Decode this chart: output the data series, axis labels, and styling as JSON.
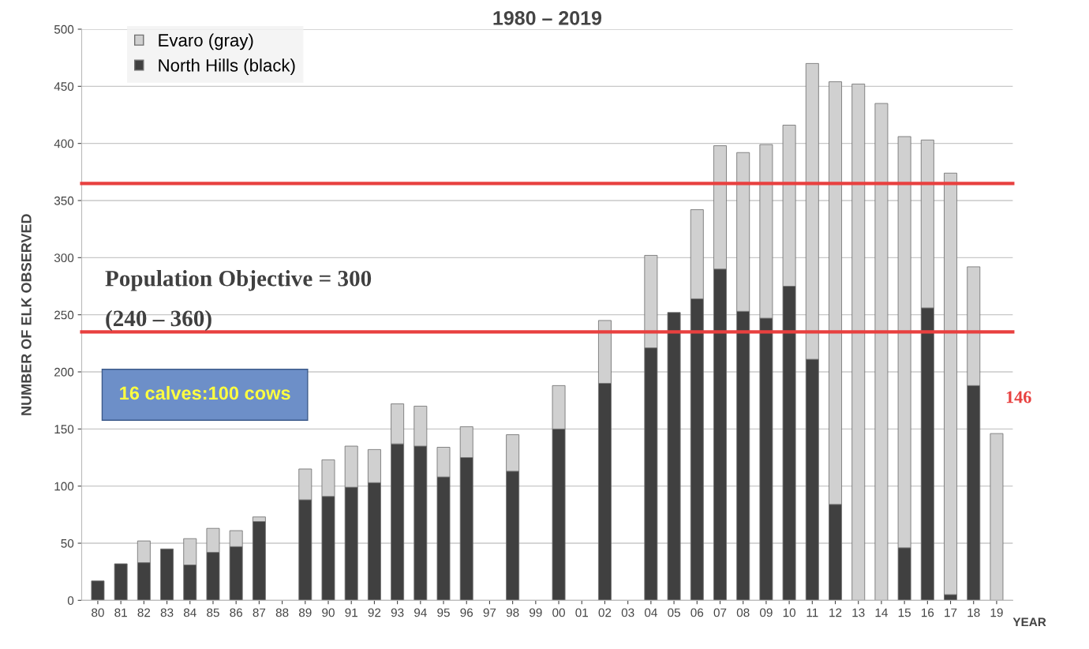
{
  "chart_data": {
    "type": "bar",
    "title": "1980 – 2019",
    "ylabel": "NUMBER OF ELK OBSERVED",
    "xlabel": "YEAR",
    "categories": [
      "80",
      "81",
      "82",
      "83",
      "84",
      "85",
      "86",
      "87",
      "88",
      "89",
      "90",
      "91",
      "92",
      "93",
      "94",
      "95",
      "96",
      "97",
      "98",
      "99",
      "00",
      "01",
      "02",
      "03",
      "04",
      "05",
      "06",
      "07",
      "08",
      "09",
      "10",
      "11",
      "12",
      "13",
      "14",
      "15",
      "16",
      "17",
      "18",
      "19"
    ],
    "stacked": true,
    "series": [
      {
        "name": "North Hills (black)",
        "color": "#404040",
        "values": [
          17,
          32,
          33,
          45,
          31,
          42,
          47,
          69,
          null,
          88,
          91,
          99,
          103,
          137,
          135,
          108,
          125,
          null,
          113,
          null,
          150,
          null,
          190,
          null,
          221,
          252,
          264,
          290,
          253,
          247,
          275,
          211,
          84,
          0,
          0,
          46,
          256,
          5,
          188,
          0
        ]
      },
      {
        "name": "Evaro (gray)",
        "color": "#d0d0d0",
        "values": [
          0,
          0,
          19,
          0,
          23,
          21,
          14,
          4,
          null,
          27,
          32,
          36,
          29,
          35,
          35,
          26,
          27,
          null,
          32,
          null,
          38,
          null,
          55,
          null,
          81,
          0,
          78,
          108,
          139,
          152,
          141,
          259,
          370,
          452,
          435,
          360,
          147,
          369,
          104,
          146
        ]
      }
    ],
    "ylim": [
      0,
      500
    ],
    "yticks": [
      0,
      50,
      100,
      150,
      200,
      250,
      300,
      350,
      400,
      450,
      500
    ],
    "grid": "y",
    "legend": "top left",
    "ref_lines": [
      {
        "axis": "y",
        "value": 365,
        "color": "#e8403f"
      },
      {
        "axis": "y",
        "value": 235,
        "color": "#e8403f"
      }
    ],
    "annotations": [
      "Population Objective = 300",
      "(240 – 360)",
      "16 calves:100 cows",
      {
        "text": "146",
        "x": "19",
        "y": 146
      }
    ]
  }
}
